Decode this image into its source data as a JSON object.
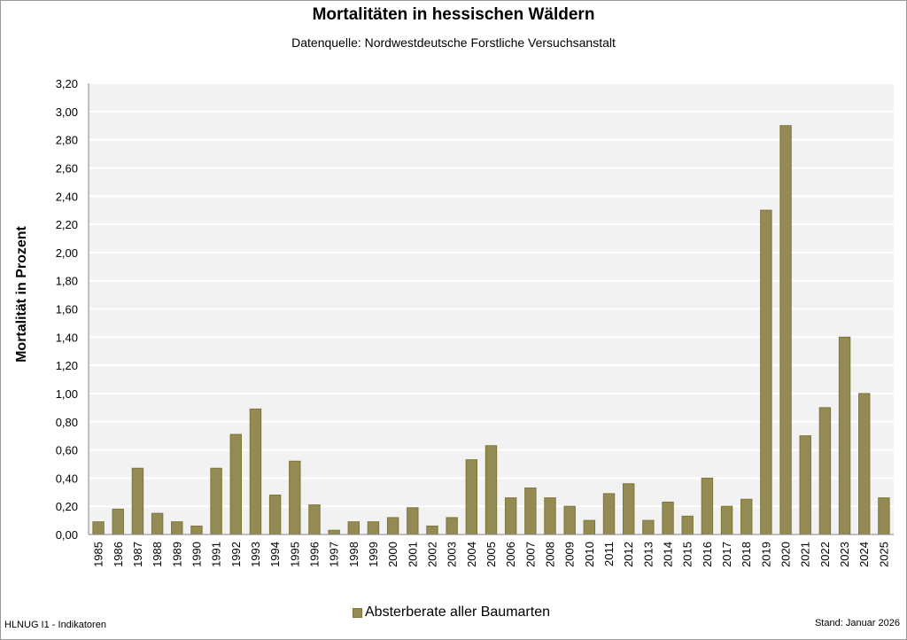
{
  "chart_data": {
    "type": "bar",
    "title": "Mortalitäten in hessischen Wäldern",
    "subtitle": "Datenquelle: Nordwestdeutsche Forstliche Versuchsanstalt",
    "xlabel": "",
    "ylabel": "Mortalität in Prozent",
    "ylim": [
      0,
      3.2
    ],
    "yticks": [
      "0,00",
      "0,20",
      "0,40",
      "0,60",
      "0,80",
      "1,00",
      "1,20",
      "1,40",
      "1,60",
      "1,80",
      "2,00",
      "2,20",
      "2,40",
      "2,60",
      "2,80",
      "3,00",
      "3,20"
    ],
    "grid": true,
    "legend_position": "bottom",
    "categories": [
      "1985",
      "1986",
      "1987",
      "1988",
      "1989",
      "1990",
      "1991",
      "1992",
      "1993",
      "1994",
      "1995",
      "1996",
      "1997",
      "1998",
      "1999",
      "2000",
      "2001",
      "2002",
      "2003",
      "2004",
      "2005",
      "2006",
      "2007",
      "2008",
      "2009",
      "2010",
      "2011",
      "2012",
      "2013",
      "2014",
      "2015",
      "2016",
      "2017",
      "2018",
      "2019",
      "2020",
      "2021",
      "2022",
      "2023",
      "2024",
      "2025"
    ],
    "series": [
      {
        "name": "Absterberate aller Baumarten",
        "color": "#948a54",
        "values": [
          0.09,
          0.18,
          0.47,
          0.15,
          0.09,
          0.06,
          0.47,
          0.71,
          0.89,
          0.28,
          0.52,
          0.21,
          0.03,
          0.09,
          0.09,
          0.12,
          0.19,
          0.06,
          0.12,
          0.53,
          0.63,
          0.26,
          0.33,
          0.26,
          0.2,
          0.1,
          0.29,
          0.36,
          0.1,
          0.23,
          0.13,
          0.4,
          0.2,
          0.25,
          2.3,
          2.9,
          0.7,
          0.9,
          1.4,
          1.0,
          0.26
        ]
      }
    ]
  },
  "footer": {
    "left": "HLNUG I1 - Indikatoren",
    "right": "Stand: Januar 2026"
  }
}
